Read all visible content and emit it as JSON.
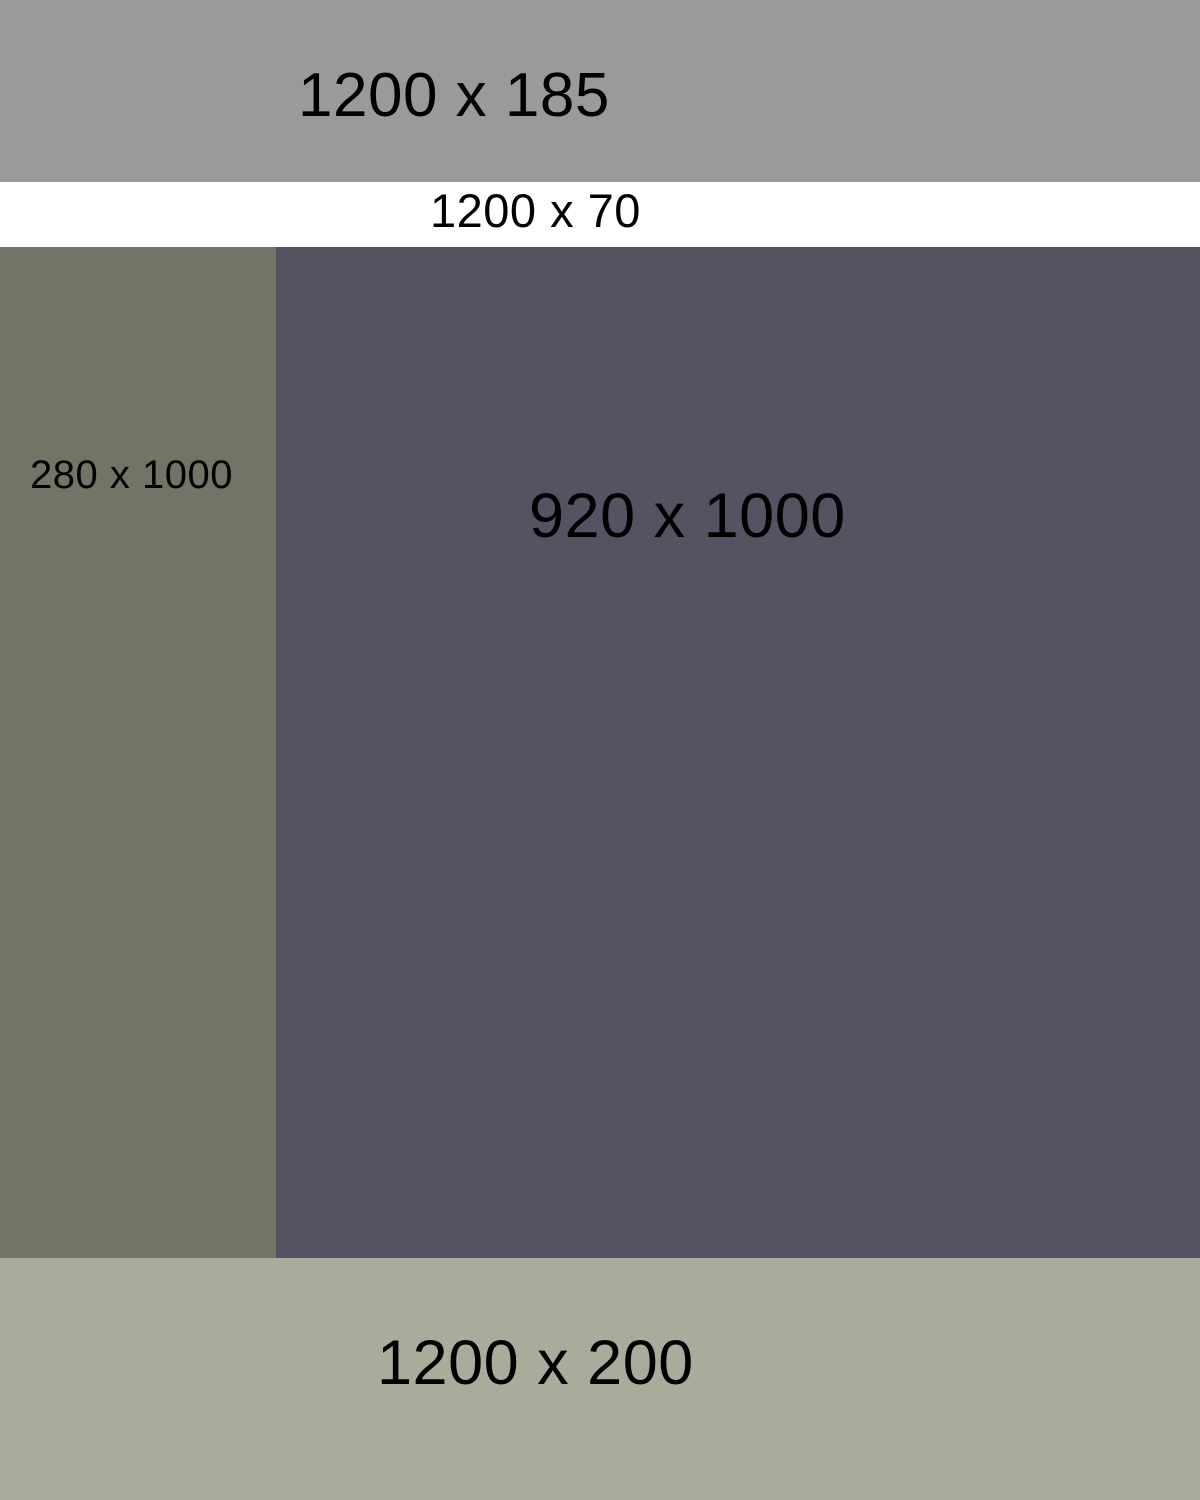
{
  "regions": {
    "header": {
      "label": "1200 x 185",
      "color": "#9a9a9a"
    },
    "nav": {
      "label": "1200 x 70",
      "color": "#ffffff"
    },
    "sidebar": {
      "label": "280 x 1000",
      "color": "#727565"
    },
    "main": {
      "label": "920 x 1000",
      "color": "#535362"
    },
    "footer": {
      "label": "1200 x 200",
      "color": "#a9ab9b"
    }
  }
}
